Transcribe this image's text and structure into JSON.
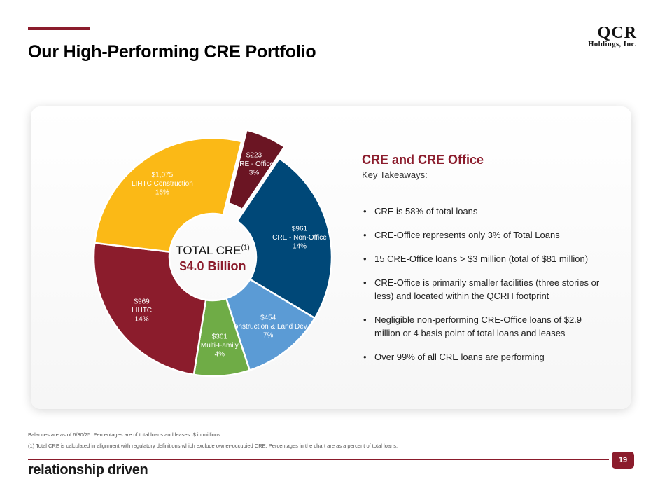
{
  "header": {
    "title": "Our High-Performing CRE Portfolio",
    "logo_line1": "QCR",
    "logo_line2": "Holdings, Inc."
  },
  "center": {
    "title": "TOTAL CRE",
    "superscript": "(1)",
    "value": "$4.0 Billion"
  },
  "chart_data": {
    "type": "pie",
    "style": "donut",
    "categories": [
      "CRE - Office",
      "CRE - Non-Office",
      "Construction & Land Dev",
      "Multi-Family",
      "LIHTC",
      "LIHTC Construction"
    ],
    "values": [
      223,
      961,
      454,
      301,
      969,
      1075
    ],
    "value_labels": [
      "$223",
      "$961",
      "$454",
      "$301",
      "$969",
      "$1,075"
    ],
    "percent_labels": [
      "3%",
      "14%",
      "7%",
      "4%",
      "14%",
      "16%"
    ],
    "colors": [
      "#6b1523",
      "#004878",
      "#5b9bd5",
      "#6fac46",
      "#8b1c2c",
      "#fbb916"
    ],
    "exploded": [
      "CRE - Office"
    ],
    "unit": "$ in millions"
  },
  "side": {
    "heading": "CRE and CRE Office",
    "subheading": "Key Takeaways:",
    "bullets": [
      "CRE is 58% of total loans",
      "CRE-Office represents only 3% of Total Loans",
      "15 CRE-Office loans > $3 million (total of $81 million)",
      "CRE-Office is primarily smaller facilities (three stories or less) and located within the QCRH footprint",
      "Negligible non-performing CRE-Office loans of $2.9 million or 4 basis point of total loans and leases",
      "Over 99% of all CRE loans are performing"
    ]
  },
  "footer": {
    "note1": "Balances are as of 6/30/25. Percentages are of total loans and leases. $ in millions.",
    "note2": "(1)   Total CRE is calculated in alignment with regulatory definitions which exclude owner-occupied CRE. Percentages in the chart are as a percent of total loans.",
    "tagline": "relationship driven",
    "page_number": "19"
  }
}
